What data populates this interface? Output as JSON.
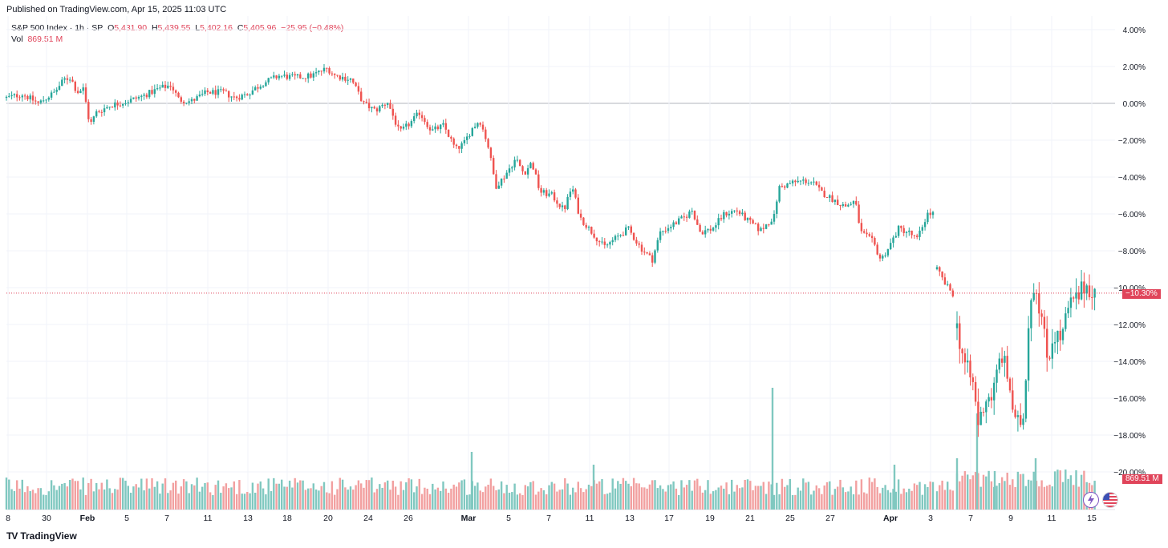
{
  "header": {
    "published": "Published on TradingView.com, Apr 15, 2025 11:03 UTC"
  },
  "legend": {
    "symbol": "S&P 500 Index · 1h · SP",
    "open_label": "O",
    "open": "5,431.90",
    "high_label": "H",
    "high": "5,439.55",
    "low_label": "L",
    "low": "5,402.16",
    "close_label": "C",
    "close": "5,405.96",
    "change": "−25.95 (−0.48%)",
    "vol_label": "Vol",
    "vol_value": "869.51 M"
  },
  "badges": {
    "last_price": "−10.30%",
    "last_volume": "869.51 M"
  },
  "footer": {
    "brand": "TradingView",
    "logo": "TV"
  },
  "colors": {
    "up": "#26a69a",
    "down": "#ef5350",
    "vol_up": "#80c8c0",
    "vol_down": "#f2a0a0",
    "grid": "#f0f3fa",
    "zero": "#b2b5be",
    "last": "#e0445a"
  },
  "icons": [
    "lightning-icon",
    "us-flag-icon",
    "tradingview-logo-icon"
  ],
  "chart_data": {
    "type": "candlestick",
    "y_unit": "percent",
    "ylim": [
      -20,
      4
    ],
    "y_ticks": [
      "4.00%",
      "2.00%",
      "0.00%",
      "−2.00%",
      "−4.00%",
      "−6.00%",
      "−8.00%",
      "−10.00%",
      "−12.00%",
      "−14.00%",
      "−16.00%",
      "−18.00%",
      "−20.00%"
    ],
    "x_ticks": [
      "8",
      "30",
      "Feb",
      "5",
      "7",
      "11",
      "13",
      "18",
      "20",
      "24",
      "26",
      "Mar",
      "5",
      "7",
      "11",
      "13",
      "17",
      "19",
      "21",
      "25",
      "27",
      "Apr",
      "3",
      "7",
      "9",
      "11",
      "15"
    ],
    "last_value": -10.3,
    "path": [
      [
        0,
        0.3
      ],
      [
        20,
        0.5
      ],
      [
        40,
        0.0
      ],
      [
        60,
        0.6
      ],
      [
        72,
        1.3
      ],
      [
        80,
        1.4
      ],
      [
        88,
        0.6
      ],
      [
        96,
        0.8
      ],
      [
        104,
        -1.2
      ],
      [
        112,
        -0.5
      ],
      [
        130,
        -0.1
      ],
      [
        150,
        0.1
      ],
      [
        170,
        0.4
      ],
      [
        190,
        0.8
      ],
      [
        205,
        1.0
      ],
      [
        215,
        0.2
      ],
      [
        230,
        0.1
      ],
      [
        250,
        0.6
      ],
      [
        270,
        0.6
      ],
      [
        285,
        0.3
      ],
      [
        300,
        0.5
      ],
      [
        320,
        1.1
      ],
      [
        340,
        1.5
      ],
      [
        360,
        1.4
      ],
      [
        380,
        1.5
      ],
      [
        400,
        1.9
      ],
      [
        410,
        1.5
      ],
      [
        430,
        1.3
      ],
      [
        445,
        0.0
      ],
      [
        460,
        -0.4
      ],
      [
        475,
        0.1
      ],
      [
        490,
        -1.6
      ],
      [
        505,
        -1.0
      ],
      [
        515,
        -0.5
      ],
      [
        530,
        -1.5
      ],
      [
        545,
        -1.2
      ],
      [
        560,
        -2.5
      ],
      [
        570,
        -2.2
      ],
      [
        580,
        -1.4
      ],
      [
        590,
        -0.9
      ],
      [
        600,
        -2.2
      ],
      [
        610,
        -4.5
      ],
      [
        620,
        -4.0
      ],
      [
        635,
        -3.0
      ],
      [
        645,
        -3.8
      ],
      [
        655,
        -3.2
      ],
      [
        665,
        -4.8
      ],
      [
        680,
        -5.0
      ],
      [
        695,
        -5.8
      ],
      [
        705,
        -4.5
      ],
      [
        715,
        -6.2
      ],
      [
        730,
        -7.0
      ],
      [
        745,
        -7.8
      ],
      [
        760,
        -7.3
      ],
      [
        775,
        -6.8
      ],
      [
        790,
        -7.8
      ],
      [
        805,
        -8.5
      ],
      [
        815,
        -7.0
      ],
      [
        830,
        -6.6
      ],
      [
        845,
        -6.2
      ],
      [
        855,
        -5.8
      ],
      [
        865,
        -7.0
      ],
      [
        880,
        -6.8
      ],
      [
        895,
        -6.0
      ],
      [
        910,
        -5.8
      ],
      [
        925,
        -6.4
      ],
      [
        940,
        -6.9
      ],
      [
        958,
        -6.1
      ],
      [
        962,
        -4.6
      ],
      [
        980,
        -4.3
      ],
      [
        995,
        -4.2
      ],
      [
        1005,
        -4.3
      ],
      [
        1015,
        -4.8
      ],
      [
        1030,
        -5.2
      ],
      [
        1045,
        -5.6
      ],
      [
        1058,
        -5.3
      ],
      [
        1065,
        -7.0
      ],
      [
        1080,
        -7.5
      ],
      [
        1090,
        -8.5
      ],
      [
        1100,
        -7.8
      ],
      [
        1112,
        -6.8
      ],
      [
        1125,
        -7.0
      ],
      [
        1135,
        -7.4
      ],
      [
        1148,
        -6.0
      ],
      [
        1158,
        -6.0
      ]
    ],
    "path2": [
      [
        1160,
        -9.0
      ],
      [
        1170,
        -9.8
      ],
      [
        1183,
        -10.5
      ]
    ],
    "path3": [
      [
        1185,
        -12.2
      ],
      [
        1195,
        -14.2
      ],
      [
        1205,
        -15.3
      ],
      [
        1212,
        -17.5
      ],
      [
        1220,
        -16.0
      ],
      [
        1230,
        -15.8
      ],
      [
        1240,
        -13.5
      ],
      [
        1250,
        -15.2
      ],
      [
        1258,
        -17.6
      ],
      [
        1268,
        -17.0
      ],
      [
        1275,
        -11.0
      ],
      [
        1282,
        -9.6
      ],
      [
        1290,
        -11.5
      ],
      [
        1298,
        -14.0
      ],
      [
        1305,
        -12.5
      ],
      [
        1315,
        -12.8
      ],
      [
        1325,
        -11.0
      ],
      [
        1335,
        -10.6
      ],
      [
        1345,
        -9.8
      ],
      [
        1358,
        -10.3
      ]
    ],
    "volume_spikes": [
      [
        580,
        0.45
      ],
      [
        732,
        0.35
      ],
      [
        955,
        0.95
      ],
      [
        1107,
        0.35
      ],
      [
        1185,
        0.4
      ],
      [
        1210,
        0.75
      ],
      [
        1232,
        0.3
      ],
      [
        1283,
        0.4
      ]
    ]
  }
}
